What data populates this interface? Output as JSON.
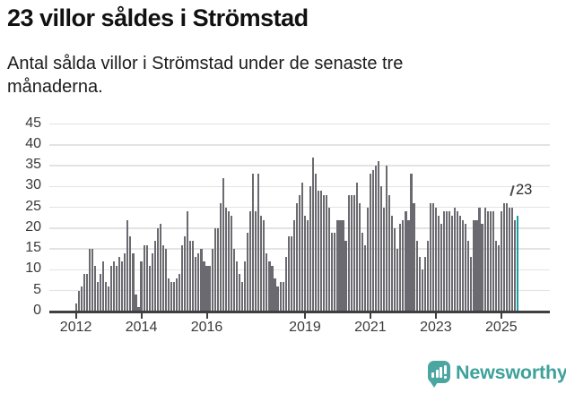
{
  "header": {
    "title": "23 villor såldes i Strömstad",
    "subtitle": "Antal sålda villor i Strömstad under de senaste tre månaderna."
  },
  "chart_data": {
    "type": "bar",
    "title": "23 villor såldes i Strömstad",
    "subtitle": "Antal sålda villor i Strömstad under de senaste tre månaderna.",
    "x_unit": "month",
    "x_start": "2012-01",
    "x_tick_labels": [
      "2012",
      "2014",
      "2016",
      "2019",
      "2021",
      "2023",
      "2025"
    ],
    "x_tick_month_index": [
      0,
      24,
      48,
      84,
      108,
      132,
      156
    ],
    "y_ticks": [
      0,
      5,
      10,
      15,
      20,
      25,
      30,
      35,
      40,
      45
    ],
    "ylim": [
      0,
      45
    ],
    "grid": "horizontal",
    "legend": "none",
    "bar_color": "#6a6a70",
    "highlight_color": "#16a0a0",
    "highlight_index": 162,
    "annotation": {
      "text": "23",
      "value": 23
    },
    "values": [
      2,
      5,
      6,
      9,
      9,
      15,
      15,
      11,
      7,
      9,
      12,
      7,
      6,
      11,
      12,
      11,
      13,
      12,
      14,
      22,
      18,
      14,
      4,
      1,
      12,
      16,
      16,
      11,
      14,
      17,
      20,
      21,
      16,
      15,
      8,
      7,
      7,
      8,
      9,
      16,
      18,
      24,
      17,
      17,
      13,
      14,
      15,
      12,
      11,
      11,
      15,
      20,
      20,
      26,
      32,
      25,
      24,
      23,
      15,
      12,
      9,
      7,
      12,
      19,
      24,
      33,
      24,
      33,
      23,
      22,
      14,
      12,
      11,
      8,
      6,
      7,
      7,
      13,
      18,
      18,
      22,
      26,
      28,
      31,
      23,
      22,
      30,
      37,
      33,
      29,
      29,
      28,
      28,
      25,
      19,
      19,
      22,
      22,
      22,
      17,
      28,
      28,
      28,
      31,
      26,
      19,
      16,
      25,
      33,
      34,
      35,
      36,
      30,
      25,
      35,
      28,
      23,
      20,
      15,
      21,
      22,
      24,
      22,
      33,
      26,
      17,
      13,
      10,
      13,
      17,
      26,
      26,
      25,
      23,
      21,
      24,
      24,
      24,
      23,
      25,
      24,
      23,
      22,
      21,
      17,
      13,
      22,
      22,
      25,
      21,
      25,
      24,
      24,
      24,
      17,
      16,
      24,
      26,
      26,
      25,
      25,
      22,
      23
    ]
  },
  "footer": {
    "brand": "Newsworthy"
  }
}
